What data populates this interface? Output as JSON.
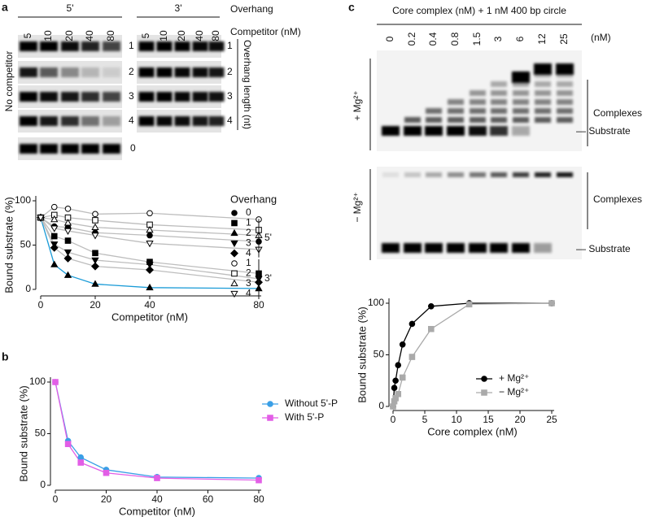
{
  "panel_labels": [
    "a",
    "b",
    "c"
  ],
  "gel_a": {
    "headers": [
      "5'",
      "3'"
    ],
    "overhang_label": "Overhang",
    "competitor_label": "Competitor (nM)",
    "lanes_5": [
      "5",
      "10",
      "20",
      "40",
      "80"
    ],
    "lanes_3": [
      "5",
      "10",
      "20",
      "40",
      "80"
    ],
    "rows_5": [
      "1",
      "2",
      "3",
      "4"
    ],
    "rows_3": [
      "1",
      "2",
      "3",
      "4"
    ],
    "no_competitor": "No competitor",
    "no_competitor_row": "0",
    "length_label": "Overhang length (nt)"
  },
  "gel_c": {
    "title": "Core complex (nM) + 1 nM 400 bp circle",
    "lanes": [
      "0",
      "0.2",
      "0.4",
      "0.8",
      "1.5",
      "3",
      "6",
      "12",
      "25"
    ],
    "unit": "(nM)",
    "conditions": [
      "+ Mg²⁺",
      "− Mg²⁺"
    ],
    "complexes": "Complexes",
    "substrate": "— Substrate"
  },
  "chart_data": [
    {
      "type": "line",
      "y_label": "Bound substrate (%)",
      "x_label": "Competitor (nM)",
      "x": [
        0,
        5,
        10,
        20,
        40,
        80
      ],
      "xlim": [
        0,
        80
      ],
      "ylim": [
        0,
        100
      ],
      "xticks": [
        0,
        20,
        40,
        80
      ],
      "yticks": [
        0,
        50,
        100
      ],
      "legend_title": "Overhang",
      "legend_groups": [
        "5'",
        "3'"
      ],
      "series": [
        {
          "name": "0",
          "color": "#000000",
          "line_color": "#bdbdbd",
          "marker": "circle",
          "filled": true,
          "values": [
            81,
            71,
            70,
            64,
            61,
            54
          ]
        },
        {
          "name": "1",
          "color": "#000000",
          "line_color": "#bdbdbd",
          "marker": "square",
          "filled": true,
          "values": [
            81,
            60,
            55,
            41,
            31,
            18
          ]
        },
        {
          "name": "2",
          "color": "#000000",
          "line_color": "#1a9bd7",
          "marker": "triangle-up",
          "filled": true,
          "values": [
            81,
            28,
            16,
            6,
            2,
            1
          ]
        },
        {
          "name": "3",
          "color": "#000000",
          "line_color": "#bdbdbd",
          "marker": "triangle-down",
          "filled": true,
          "values": [
            81,
            51,
            42,
            33,
            28,
            12
          ]
        },
        {
          "name": "4",
          "color": "#000000",
          "line_color": "#bdbdbd",
          "marker": "diamond",
          "filled": true,
          "values": [
            81,
            47,
            35,
            26,
            22,
            8
          ]
        },
        {
          "name": "1",
          "color": "#000000",
          "line_color": "#bdbdbd",
          "marker": "circle",
          "filled": false,
          "values": [
            81,
            93,
            91,
            85,
            86,
            79
          ]
        },
        {
          "name": "2",
          "color": "#000000",
          "line_color": "#bdbdbd",
          "marker": "square",
          "filled": false,
          "values": [
            81,
            84,
            81,
            78,
            73,
            67
          ]
        },
        {
          "name": "3",
          "color": "#000000",
          "line_color": "#bdbdbd",
          "marker": "triangle-up",
          "filled": false,
          "values": [
            81,
            79,
            75,
            70,
            67,
            61
          ]
        },
        {
          "name": "4",
          "color": "#000000",
          "line_color": "#bdbdbd",
          "marker": "triangle-down",
          "filled": false,
          "values": [
            81,
            69,
            66,
            61,
            52,
            45
          ]
        }
      ]
    },
    {
      "type": "line",
      "y_label": "Bound substrate (%)",
      "x_label": "Competitor (nM)",
      "x": [
        0,
        5,
        10,
        20,
        40,
        80
      ],
      "xlim": [
        0,
        80
      ],
      "ylim": [
        0,
        100
      ],
      "xticks": [
        0,
        20,
        40,
        60,
        80
      ],
      "yticks": [
        0,
        50,
        100
      ],
      "series": [
        {
          "name": "Without 5'-P",
          "color": "#3a9fe6",
          "marker": "circle",
          "filled": true,
          "values": [
            100,
            43,
            27,
            15,
            8,
            7
          ]
        },
        {
          "name": "With 5'-P",
          "color": "#e25ee6",
          "marker": "square",
          "filled": true,
          "values": [
            100,
            40,
            22,
            12,
            7,
            5
          ]
        }
      ]
    },
    {
      "type": "line",
      "y_label": "Bound substrate (%)",
      "x_label": "Core complex (nM)",
      "x": [
        0,
        0.2,
        0.4,
        0.8,
        1.5,
        3,
        6,
        12,
        25
      ],
      "xlim": [
        0,
        25
      ],
      "ylim": [
        0,
        100
      ],
      "xticks": [
        0,
        5,
        10,
        15,
        20,
        25
      ],
      "yticks": [
        0,
        50,
        100
      ],
      "series": [
        {
          "name": "+ Mg²⁺",
          "color": "#000000",
          "marker": "circle",
          "filled": true,
          "values": [
            0,
            18,
            25,
            40,
            60,
            80,
            97,
            100,
            100
          ]
        },
        {
          "name": "− Mg²⁺",
          "color": "#aaaaaa",
          "marker": "square",
          "filled": true,
          "values": [
            0,
            5,
            8,
            12,
            28,
            48,
            75,
            99,
            100
          ]
        }
      ]
    }
  ]
}
